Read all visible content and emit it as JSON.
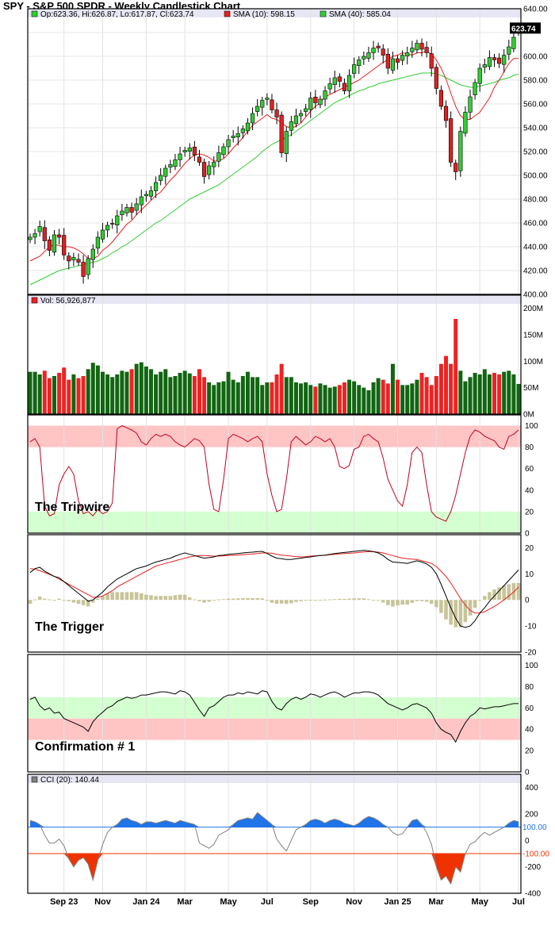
{
  "title": "SPY - S&P 500 SPDR - Weekly Candlestick Chart",
  "legend": {
    "ohlc": "Op:623.36, Hi:626.87, Lo:617.87, Cl:623.74",
    "sma10": "SMA (10): 598.15",
    "sma40": "SMA (40): 585.04",
    "vol": "Vol: 56,926,877",
    "cci": "CCI (20): 140.44"
  },
  "panels": {
    "tripwire": "The Tripwire",
    "trigger": "The Trigger",
    "confirmation": "Confirmation # 1"
  },
  "colors": {
    "up": "#33cc33",
    "down": "#dd2222",
    "vol_up": "#116611",
    "vol_down": "#ee2222",
    "sma10": "#e82020",
    "sma40": "#33cc33",
    "stoch_line": "#c00020",
    "zone_red": "#ffc4c4",
    "zone_green": "#d4ffd0",
    "macd_hist": "#c8c49a",
    "cci_pos": "#1e74e8",
    "cci_neg": "#ee3300"
  },
  "chart_data": [
    {
      "type": "candlestick",
      "title": "SPY - S&P 500 SPDR - Weekly Candlestick Chart",
      "ylim": [
        400,
        640
      ],
      "yticks": [
        "400.00",
        "420.00",
        "440.00",
        "460.00",
        "480.00",
        "500.00",
        "520.00",
        "540.00",
        "560.00",
        "580.00",
        "600.00",
        "620.00",
        "640.00"
      ],
      "last_price_label": "623.74",
      "xtick_labels": [
        "Sep 23",
        "Nov",
        "Jan 24",
        "Mar",
        "May",
        "Jul",
        "Sep",
        "Nov",
        "Jan 25",
        "Mar",
        "May",
        "Jul"
      ],
      "xtick_index": [
        7,
        15,
        24,
        32,
        41,
        49,
        58,
        67,
        76,
        84,
        93,
        101
      ],
      "close": [
        448,
        451,
        457,
        445,
        437,
        450,
        448,
        433,
        428,
        431,
        427,
        415,
        430,
        438,
        448,
        454,
        458,
        459,
        466,
        470,
        473,
        469,
        476,
        482,
        484,
        487,
        494,
        500,
        506,
        509,
        513,
        518,
        521,
        523,
        517,
        511,
        499,
        508,
        511,
        519,
        524,
        530,
        533,
        535,
        539,
        544,
        552,
        558,
        563,
        565,
        555,
        549,
        519,
        537,
        545,
        550,
        552,
        556,
        565,
        561,
        564,
        571,
        577,
        582,
        579,
        571,
        584,
        593,
        597,
        600,
        603,
        607,
        607,
        601,
        590,
        598,
        595,
        601,
        603,
        607,
        611,
        606,
        603,
        590,
        573,
        558,
        546,
        511,
        503,
        537,
        553,
        566,
        578,
        590,
        593,
        599,
        597,
        594,
        601,
        608,
        616,
        623.74
      ],
      "sma10": [
        428,
        430,
        432,
        436,
        440,
        442,
        441,
        440,
        440,
        439,
        437,
        434,
        430,
        430,
        432,
        437,
        440,
        444,
        449,
        454,
        459,
        462,
        467,
        471,
        475,
        479,
        483,
        486,
        491,
        496,
        500,
        505,
        510,
        514,
        517,
        518,
        517,
        515,
        512,
        512,
        514,
        518,
        523,
        527,
        532,
        537,
        542,
        545,
        548,
        551,
        548,
        547,
        544,
        541,
        540,
        541,
        544,
        549,
        554,
        558,
        561,
        566,
        568,
        570,
        572,
        574,
        576,
        578,
        580,
        583,
        586,
        589,
        592,
        595,
        597,
        600,
        601,
        603,
        602,
        601,
        603,
        603,
        604,
        602,
        597,
        590,
        581,
        569,
        558,
        550,
        547,
        547,
        550,
        553,
        559,
        565,
        574,
        580,
        587,
        594,
        598.15,
        598.15
      ],
      "sma40": [
        408,
        410,
        412,
        414,
        416,
        418,
        420,
        421,
        422,
        423,
        424,
        425,
        426,
        427,
        428,
        430,
        432,
        435,
        437,
        440,
        442,
        445,
        448,
        451,
        454,
        457,
        460,
        462,
        465,
        468,
        471,
        474,
        477,
        480,
        482,
        484,
        486,
        488,
        490,
        492,
        495,
        498,
        501,
        504,
        507,
        510,
        513,
        516,
        520,
        523,
        526,
        528,
        530,
        532,
        534,
        537,
        540,
        543,
        546,
        549,
        552,
        555,
        558,
        561,
        563,
        565,
        567,
        569,
        571,
        572,
        574,
        575,
        577,
        578,
        579,
        580,
        581,
        582,
        583,
        584,
        585,
        586,
        586,
        586,
        585,
        584,
        582,
        580,
        578,
        576,
        575,
        574,
        574,
        575,
        576,
        577,
        578,
        580,
        581,
        582,
        584,
        585.04
      ],
      "volume_m": [
        80,
        80,
        75,
        82,
        68,
        72,
        78,
        88,
        65,
        75,
        68,
        72,
        85,
        97,
        92,
        80,
        75,
        70,
        75,
        82,
        80,
        85,
        95,
        98,
        90,
        85,
        75,
        80,
        85,
        70,
        72,
        78,
        82,
        77,
        72,
        85,
        70,
        60,
        55,
        60,
        62,
        80,
        65,
        60,
        72,
        80,
        70,
        70,
        55,
        60,
        60,
        75,
        95,
        70,
        70,
        60,
        58,
        60,
        55,
        52,
        58,
        55,
        50,
        52,
        55,
        60,
        65,
        62,
        55,
        50,
        45,
        60,
        68,
        65,
        58,
        95,
        65,
        55,
        55,
        58,
        65,
        78,
        70,
        55,
        72,
        95,
        110,
        95,
        180,
        82,
        62,
        70,
        78,
        75,
        85,
        75,
        78,
        75,
        80,
        82,
        75,
        57
      ]
    },
    {
      "type": "line",
      "panel": "The Tripwire",
      "ylim": [
        0,
        100
      ],
      "zones": {
        "red": [
          80,
          100
        ],
        "green": [
          0,
          20
        ]
      },
      "values": [
        85,
        88,
        80,
        25,
        16,
        18,
        45,
        55,
        62,
        55,
        30,
        18,
        20,
        16,
        22,
        18,
        20,
        28,
        97,
        100,
        98,
        96,
        93,
        85,
        82,
        88,
        92,
        90,
        92,
        90,
        85,
        82,
        80,
        84,
        88,
        86,
        80,
        45,
        22,
        20,
        50,
        88,
        92,
        90,
        88,
        85,
        88,
        90,
        85,
        55,
        35,
        20,
        22,
        50,
        85,
        90,
        86,
        82,
        85,
        90,
        88,
        85,
        88,
        80,
        62,
        60,
        63,
        78,
        80,
        90,
        92,
        88,
        85,
        70,
        50,
        40,
        30,
        25,
        45,
        75,
        80,
        75,
        45,
        20,
        15,
        13,
        11,
        20,
        35,
        55,
        75,
        90,
        96,
        94,
        90,
        88,
        86,
        80,
        78,
        90,
        92,
        96
      ]
    },
    {
      "type": "line",
      "panel": "The Trigger",
      "ylim": [
        -20,
        20
      ],
      "macd": [
        10.5,
        12,
        12.5,
        11,
        10,
        9,
        8.5,
        7,
        5.5,
        4,
        2.5,
        1,
        -0.5,
        0,
        1.5,
        3,
        5,
        6.5,
        8,
        9,
        10,
        11,
        12,
        12.5,
        13,
        13.8,
        14.5,
        15,
        15.5,
        16,
        16.8,
        17.5,
        18,
        17.5,
        17,
        16.5,
        16,
        16.2,
        16.5,
        17,
        17.2,
        17.5,
        17.6,
        17.8,
        18,
        18.2,
        18.3,
        18.5,
        18.6,
        17.8,
        16.8,
        16,
        15.8,
        15.5,
        15.5,
        15.8,
        16,
        16.3,
        16.5,
        16.8,
        17,
        17.2,
        17.5,
        17.8,
        18,
        18.2,
        18.4,
        18.6,
        18.8,
        19,
        18.8,
        18.5,
        18,
        17,
        15.5,
        14.5,
        14.4,
        14.2,
        14,
        14.5,
        15,
        14.5,
        13.8,
        12.5,
        10,
        6,
        1.5,
        -3,
        -7,
        -10,
        -10.5,
        -10,
        -8,
        -5,
        -3,
        -0.5,
        1.5,
        3.5,
        5.5,
        7.5,
        9.5,
        11.5
      ],
      "signal": [
        12,
        11.8,
        11.2,
        10.5,
        9.8,
        9,
        8,
        7,
        6,
        5,
        4,
        3,
        2,
        1,
        1,
        1.5,
        2.5,
        3.5,
        5,
        6,
        7,
        8,
        9,
        10,
        11,
        12,
        13,
        13.5,
        14,
        14.5,
        15,
        15.5,
        16,
        16.5,
        16.8,
        17,
        17,
        16.9,
        16.8,
        16.8,
        16.9,
        17,
        17.1,
        17.2,
        17.3,
        17.5,
        17.6,
        17.8,
        18,
        18,
        17.9,
        17.5,
        17.2,
        17,
        16.8,
        16.6,
        16.5,
        16.6,
        16.8,
        16.9,
        17,
        17.1,
        17.3,
        17.5,
        17.6,
        17.8,
        17.9,
        18,
        18.2,
        18.4,
        18.5,
        18.5,
        18.3,
        18,
        17.5,
        17,
        16.5,
        16,
        15.8,
        15.6,
        15.5,
        15,
        14.5,
        14,
        12.8,
        11,
        9,
        6.5,
        3.5,
        0.5,
        -2,
        -4,
        -5,
        -5,
        -4.5,
        -3.5,
        -2.5,
        -1.3,
        0,
        1.5,
        3,
        5
      ],
      "histogram": [
        -1.5,
        0.2,
        1.3,
        0.5,
        0.2,
        0,
        0.5,
        0,
        -0.5,
        -1,
        -1.5,
        -2,
        -2.5,
        -1,
        0.5,
        1.5,
        2.5,
        3,
        3,
        3,
        3,
        3,
        3,
        2.5,
        2,
        1.8,
        1.5,
        1.5,
        1.5,
        1.5,
        1.8,
        2,
        2,
        1,
        0.2,
        -0.5,
        -1,
        -0.7,
        -0.3,
        0.2,
        0.3,
        0.5,
        0.5,
        0.6,
        0.7,
        0.7,
        0.7,
        0.7,
        0.6,
        -0.2,
        -1.1,
        -1.5,
        -1.4,
        -1.5,
        -1.3,
        -0.8,
        -0.5,
        -0.3,
        -0.3,
        -0.1,
        0,
        0.1,
        0.2,
        0.3,
        0.4,
        0.4,
        0.5,
        0.6,
        0.6,
        0.6,
        0.3,
        0,
        -0.3,
        -1,
        -2,
        -2.5,
        -2.1,
        -1.8,
        -1.8,
        -1.1,
        -0.5,
        -0.5,
        -0.7,
        -1.5,
        -2.8,
        -5,
        -7.5,
        -9.5,
        -10.5,
        -10.5,
        -8.5,
        -6,
        -3,
        0,
        1.5,
        3,
        4,
        4.8,
        5.5,
        6,
        6.5,
        6.5
      ]
    },
    {
      "type": "line",
      "panel": "Confirmation # 1",
      "ylim": [
        0,
        100
      ],
      "zones": {
        "green": [
          50,
          70
        ],
        "red": [
          30,
          50
        ]
      },
      "values": [
        68,
        70,
        62,
        58,
        60,
        55,
        56,
        50,
        48,
        46,
        44,
        42,
        38,
        47,
        52,
        56,
        60,
        62,
        66,
        68,
        70,
        69,
        70,
        72,
        72,
        73,
        74,
        75,
        75,
        74,
        73,
        76,
        75,
        72,
        65,
        58,
        52,
        60,
        62,
        66,
        70,
        72,
        72,
        74,
        73,
        75,
        74,
        73,
        76,
        75,
        66,
        60,
        58,
        64,
        68,
        70,
        68,
        70,
        73,
        72,
        70,
        72,
        74,
        75,
        73,
        70,
        72,
        74,
        74,
        75,
        75,
        74,
        72,
        68,
        64,
        62,
        60,
        58,
        60,
        63,
        64,
        62,
        60,
        55,
        46,
        40,
        37,
        35,
        28,
        38,
        46,
        52,
        55,
        60,
        59,
        60,
        61,
        61,
        62,
        63,
        64,
        64
      ]
    },
    {
      "type": "line",
      "panel": "CCI (20)",
      "ylim": [
        -400,
        400
      ],
      "reference_lines": [
        100,
        -100
      ],
      "values": [
        150,
        140,
        120,
        40,
        -20,
        -20,
        10,
        -40,
        -140,
        -200,
        -150,
        -130,
        -180,
        -300,
        -150,
        -30,
        60,
        100,
        120,
        160,
        170,
        150,
        140,
        120,
        140,
        140,
        130,
        140,
        150,
        140,
        130,
        150,
        140,
        130,
        120,
        -20,
        -40,
        -60,
        -30,
        40,
        60,
        80,
        120,
        150,
        160,
        170,
        160,
        210,
        180,
        150,
        120,
        10,
        -40,
        -80,
        0,
        80,
        100,
        120,
        150,
        160,
        150,
        130,
        150,
        160,
        150,
        130,
        120,
        110,
        130,
        160,
        180,
        170,
        150,
        120,
        100,
        60,
        40,
        50,
        100,
        150,
        160,
        120,
        60,
        -30,
        -200,
        -300,
        -270,
        -330,
        -200,
        -240,
        -100,
        -30,
        -10,
        30,
        60,
        40,
        60,
        80,
        100,
        130,
        150,
        140.44
      ],
      "yticks": [
        "-400",
        "-200",
        "-100.00",
        "0",
        "100.00",
        "200",
        "400"
      ]
    }
  ]
}
